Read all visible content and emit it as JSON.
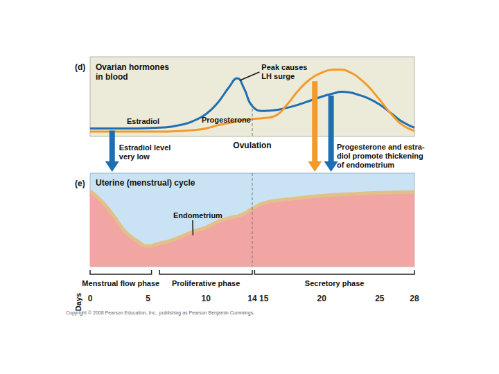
{
  "chart_data": [
    {
      "type": "line",
      "label": "(d)",
      "title": "Ovarian hormones\nin blood",
      "x": [
        0,
        2,
        4,
        6,
        8,
        9,
        10,
        11,
        12,
        12.7,
        13.3,
        14,
        15,
        16,
        17,
        18,
        19,
        20,
        21,
        21.7,
        22.5,
        23,
        24,
        25,
        26,
        27,
        28
      ],
      "series": [
        {
          "name": "Estradiol",
          "color": "#1f6db3",
          "values": [
            10,
            10,
            10,
            11,
            15,
            20,
            28,
            42,
            62,
            73,
            60,
            38,
            32,
            33,
            36,
            40,
            45,
            50,
            54,
            56,
            55,
            53,
            48,
            40,
            29,
            18,
            11
          ]
        },
        {
          "name": "Progesterone",
          "color": "#f39a2b",
          "values": [
            6,
            6,
            6,
            6,
            7,
            8,
            10,
            14,
            17,
            19,
            21,
            22,
            23,
            26,
            40,
            58,
            72,
            80,
            84,
            84,
            80,
            76,
            63,
            46,
            28,
            14,
            7
          ]
        }
      ],
      "xlim": [
        0,
        28
      ],
      "ylim": [
        0,
        100
      ],
      "tick_labels": false,
      "annotations": [
        {
          "text": "Peak causes\nLH surge",
          "x": 14.8
        },
        {
          "text": "Ovulation",
          "x": 14
        },
        {
          "text": "Estradiol level\nvery low",
          "x": 2.5
        },
        {
          "text": "Progesterone and estra-\ndiol promote thickening\nof endometrium",
          "x": 21.3
        }
      ],
      "arrows": [
        {
          "x": 1.9,
          "series": "Estradiol"
        },
        {
          "x": 19.4,
          "series": "Progesterone"
        },
        {
          "x": 20.8,
          "series": "Estradiol"
        }
      ]
    },
    {
      "type": "area",
      "label": "(e)",
      "title": "Uterine (menstrual) cycle",
      "x": [
        0,
        1,
        2,
        3,
        4,
        5,
        6,
        7,
        8,
        9,
        10,
        11,
        12,
        13,
        14,
        15,
        17,
        20,
        23,
        25,
        28
      ],
      "series": [
        {
          "name": "Endometrium",
          "color": "#f2a6a3",
          "values": [
            81,
            70,
            55,
            38,
            28,
            22,
            25,
            28,
            33,
            38,
            42,
            48,
            52,
            55,
            62,
            68,
            72,
            76,
            78,
            79,
            80
          ]
        }
      ],
      "xlim": [
        0,
        28
      ],
      "ylim": [
        0,
        100
      ],
      "xticks": [
        0,
        5,
        10,
        14,
        15,
        20,
        25,
        28
      ],
      "xlabel": "Days",
      "tick_labels": "x",
      "phases": [
        {
          "label": "Menstrual flow phase",
          "start": 0,
          "end": 5.3
        },
        {
          "label": "Proliferative phase",
          "start": 6,
          "end": 14
        },
        {
          "label": "Secretory phase",
          "start": 14.2,
          "end": 28
        }
      ]
    }
  ],
  "copyright": "Copyright © 2008 Pearson Education, Inc., publishing as Pearson Benjamin Cummings."
}
